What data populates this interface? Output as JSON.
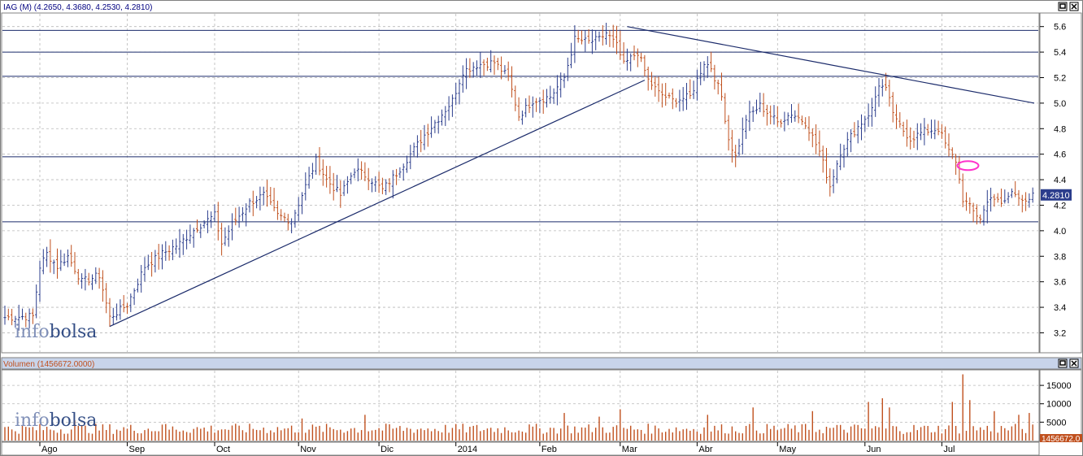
{
  "colors": {
    "up": "#2b3d8c",
    "down": "#c0501e",
    "grid": "#b8b8b8",
    "line": "#1a2a6a",
    "title_bg": "#c8d4ea",
    "vol_bar": "#c0501e",
    "highlight": "#ff33cc"
  },
  "price_pane": {
    "title": "IAG (M) (4.2650, 4.3680, 4.2530, 4.2810)",
    "last_price_label": "4.2810"
  },
  "volume_pane": {
    "title": "Volumen (1456672.0000)",
    "last_volume_label": "1456672.0"
  },
  "watermark": {
    "part1": "info",
    "part2": "bolsa"
  },
  "icons": [
    "restore-icon",
    "close-icon"
  ],
  "chart_data": [
    {
      "type": "ohlc",
      "title": "IAG (M) (4.2650, 4.3680, 4.2530, 4.2810)",
      "ylim": [
        3.05,
        5.7
      ],
      "yticks": [
        3.2,
        3.4,
        3.6,
        3.8,
        4.0,
        4.2,
        4.4,
        4.6,
        4.8,
        5.0,
        5.2,
        5.4,
        5.6
      ],
      "xticks": [
        {
          "label": "Ago",
          "bar": 10
        },
        {
          "label": "Sep",
          "bar": 35
        },
        {
          "label": "Oct",
          "bar": 60
        },
        {
          "label": "Nov",
          "bar": 84
        },
        {
          "label": "Dic",
          "bar": 107
        },
        {
          "label": "2014",
          "bar": 129
        },
        {
          "label": "Feb",
          "bar": 153
        },
        {
          "label": "Mar",
          "bar": 176
        },
        {
          "label": "Abr",
          "bar": 198
        },
        {
          "label": "May",
          "bar": 221
        },
        {
          "label": "Jun",
          "bar": 246
        },
        {
          "label": "Jul",
          "bar": 268
        }
      ],
      "bar_count": 295,
      "anchors": [
        [
          0,
          3.32
        ],
        [
          8,
          3.33
        ],
        [
          10,
          3.72
        ],
        [
          12,
          3.82
        ],
        [
          15,
          3.72
        ],
        [
          18,
          3.8
        ],
        [
          22,
          3.6
        ],
        [
          27,
          3.65
        ],
        [
          30,
          3.32
        ],
        [
          35,
          3.42
        ],
        [
          40,
          3.72
        ],
        [
          45,
          3.82
        ],
        [
          50,
          3.9
        ],
        [
          55,
          4.03
        ],
        [
          60,
          4.12
        ],
        [
          62,
          3.9
        ],
        [
          65,
          4.05
        ],
        [
          70,
          4.22
        ],
        [
          74,
          4.28
        ],
        [
          78,
          4.12
        ],
        [
          82,
          4.08
        ],
        [
          86,
          4.35
        ],
        [
          89,
          4.55
        ],
        [
          92,
          4.4
        ],
        [
          96,
          4.28
        ],
        [
          100,
          4.48
        ],
        [
          104,
          4.42
        ],
        [
          108,
          4.32
        ],
        [
          112,
          4.45
        ],
        [
          116,
          4.6
        ],
        [
          120,
          4.75
        ],
        [
          124,
          4.88
        ],
        [
          128,
          5.02
        ],
        [
          131,
          5.25
        ],
        [
          135,
          5.3
        ],
        [
          140,
          5.32
        ],
        [
          144,
          5.2
        ],
        [
          147,
          4.9
        ],
        [
          151,
          5.02
        ],
        [
          156,
          5.05
        ],
        [
          160,
          5.2
        ],
        [
          163,
          5.5
        ],
        [
          167,
          5.48
        ],
        [
          170,
          5.5
        ],
        [
          172,
          5.55
        ],
        [
          175,
          5.45
        ],
        [
          177,
          5.3
        ],
        [
          181,
          5.4
        ],
        [
          184,
          5.18
        ],
        [
          187,
          5.08
        ],
        [
          191,
          5.02
        ],
        [
          196,
          5.05
        ],
        [
          200,
          5.32
        ],
        [
          202,
          5.28
        ],
        [
          205,
          5.05
        ],
        [
          207,
          4.72
        ],
        [
          209,
          4.58
        ],
        [
          212,
          4.88
        ],
        [
          216,
          4.98
        ],
        [
          221,
          4.85
        ],
        [
          225,
          4.92
        ],
        [
          229,
          4.85
        ],
        [
          233,
          4.62
        ],
        [
          236,
          4.35
        ],
        [
          239,
          4.62
        ],
        [
          243,
          4.78
        ],
        [
          248,
          4.95
        ],
        [
          250,
          5.15
        ],
        [
          252,
          5.1
        ],
        [
          255,
          4.85
        ],
        [
          259,
          4.72
        ],
        [
          263,
          4.78
        ],
        [
          267,
          4.8
        ],
        [
          270,
          4.62
        ],
        [
          272,
          4.55
        ],
        [
          274,
          4.25
        ],
        [
          277,
          4.15
        ],
        [
          279,
          4.1
        ],
        [
          282,
          4.28
        ],
        [
          285,
          4.2
        ],
        [
          288,
          4.3
        ],
        [
          290,
          4.28
        ],
        [
          293,
          4.22
        ],
        [
          294,
          4.28
        ]
      ],
      "horizontal_lines": [
        5.57,
        5.4,
        5.21,
        4.58,
        4.07
      ],
      "trendlines": [
        {
          "from": [
            30,
            3.25
          ],
          "to": [
            183,
            5.18
          ]
        },
        {
          "from": [
            178,
            5.6
          ],
          "to": [
            312,
            5.0
          ]
        }
      ],
      "ellipse": {
        "bar": 275,
        "price": 4.51
      }
    },
    {
      "type": "bar",
      "title": "Volumen (1456672.0000)",
      "ylim": [
        0,
        19000
      ],
      "yticks": [
        5000,
        10000,
        15000
      ],
      "spikes": [
        [
          20,
          5500
        ],
        [
          46,
          4500
        ],
        [
          85,
          6000
        ],
        [
          103,
          7000
        ],
        [
          160,
          7500
        ],
        [
          170,
          6500
        ],
        [
          176,
          8500
        ],
        [
          201,
          7000
        ],
        [
          214,
          9000
        ],
        [
          231,
          8000
        ],
        [
          247,
          10500
        ],
        [
          251,
          11500
        ],
        [
          253,
          9000
        ],
        [
          271,
          10500
        ],
        [
          274,
          18000
        ],
        [
          276,
          11000
        ],
        [
          283,
          8000
        ],
        [
          290,
          7000
        ],
        [
          293,
          7500
        ]
      ]
    }
  ]
}
